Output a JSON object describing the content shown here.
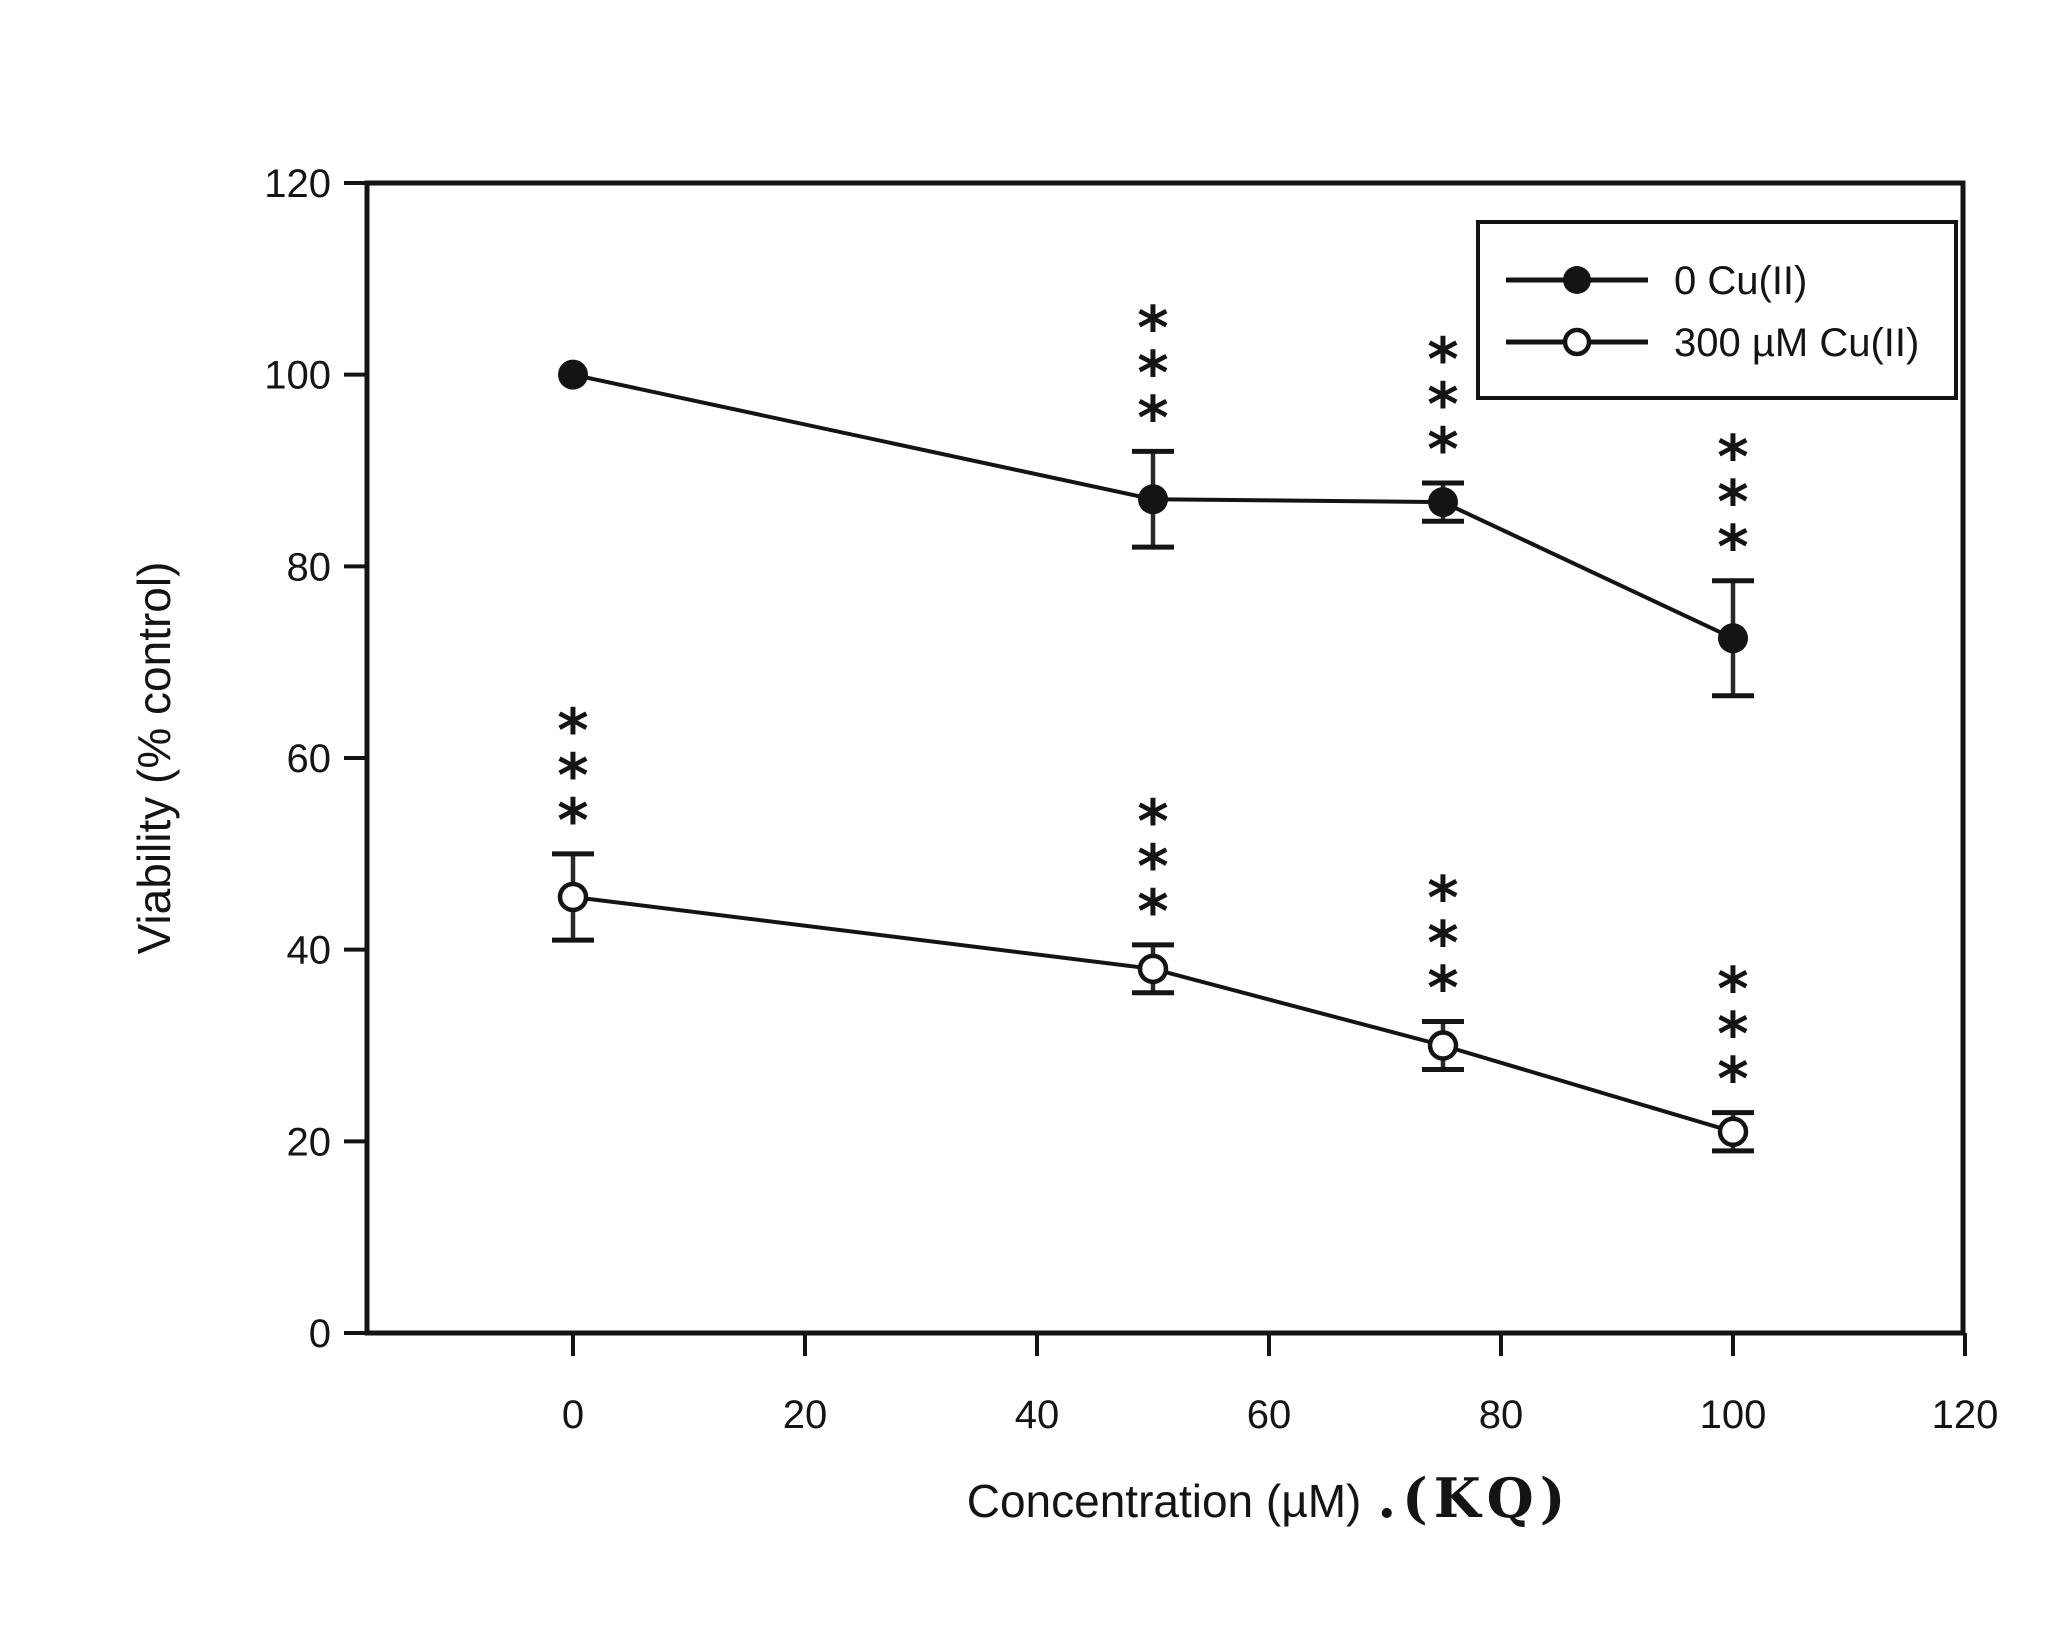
{
  "figure": {
    "background_color": "#ffffff",
    "ink_color": "#141414"
  },
  "chart_data": {
    "type": "line",
    "title": "",
    "xlabel": "Concentration (µM)",
    "xlabel_suffix": ".(KQ)",
    "ylabel": "Viability (% control)",
    "xlim": [
      -18,
      120
    ],
    "ylim": [
      0,
      120
    ],
    "xticks": [
      0,
      20,
      40,
      60,
      80,
      100,
      120
    ],
    "yticks": [
      0,
      20,
      40,
      60,
      80,
      100,
      120
    ],
    "grid": false,
    "legend_position": "top-right-inside",
    "series": [
      {
        "name": "0 Cu(II)",
        "marker": "filled-circle",
        "line_style": "solid",
        "x": [
          0,
          50,
          75,
          100
        ],
        "y": [
          100,
          87,
          86.7,
          72.5
        ],
        "yerr": [
          0,
          5,
          2,
          6
        ],
        "significance": [
          "",
          "***",
          "***",
          "***"
        ]
      },
      {
        "name": "300 µM Cu(II)",
        "marker": "open-circle",
        "line_style": "solid",
        "x": [
          0,
          50,
          75,
          100
        ],
        "y": [
          45.5,
          38,
          30,
          21
        ],
        "yerr": [
          4.5,
          2.5,
          2.5,
          2
        ],
        "significance": [
          "***",
          "***",
          "***",
          "***"
        ]
      }
    ]
  }
}
